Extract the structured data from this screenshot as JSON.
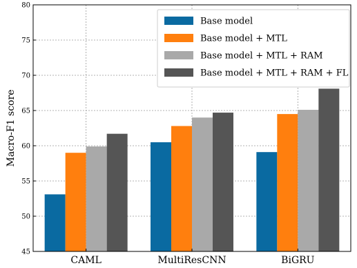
{
  "chart_data": {
    "type": "bar",
    "categories": [
      "CAML",
      "MultiResCNN",
      "BiGRU"
    ],
    "series": [
      {
        "name": "Base model",
        "values": [
          53.1,
          60.5,
          59.1
        ],
        "color": "#0a6aa1"
      },
      {
        "name": "Base model + MTL",
        "values": [
          59.0,
          62.8,
          64.5
        ],
        "color": "#ff7f0e"
      },
      {
        "name": "Base model + MTL + RAM",
        "values": [
          59.9,
          64.0,
          65.1
        ],
        "color": "#a9a9a9"
      },
      {
        "name": "Base model + MTL + RAM + FL",
        "values": [
          61.7,
          64.7,
          68.1
        ],
        "color": "#555555"
      }
    ],
    "ylabel": "Macro-F1 score",
    "ylim": [
      45,
      80
    ],
    "yticks": [
      45,
      50,
      55,
      60,
      65,
      70,
      75,
      80
    ],
    "grid": true,
    "legend_position": "top-right"
  }
}
